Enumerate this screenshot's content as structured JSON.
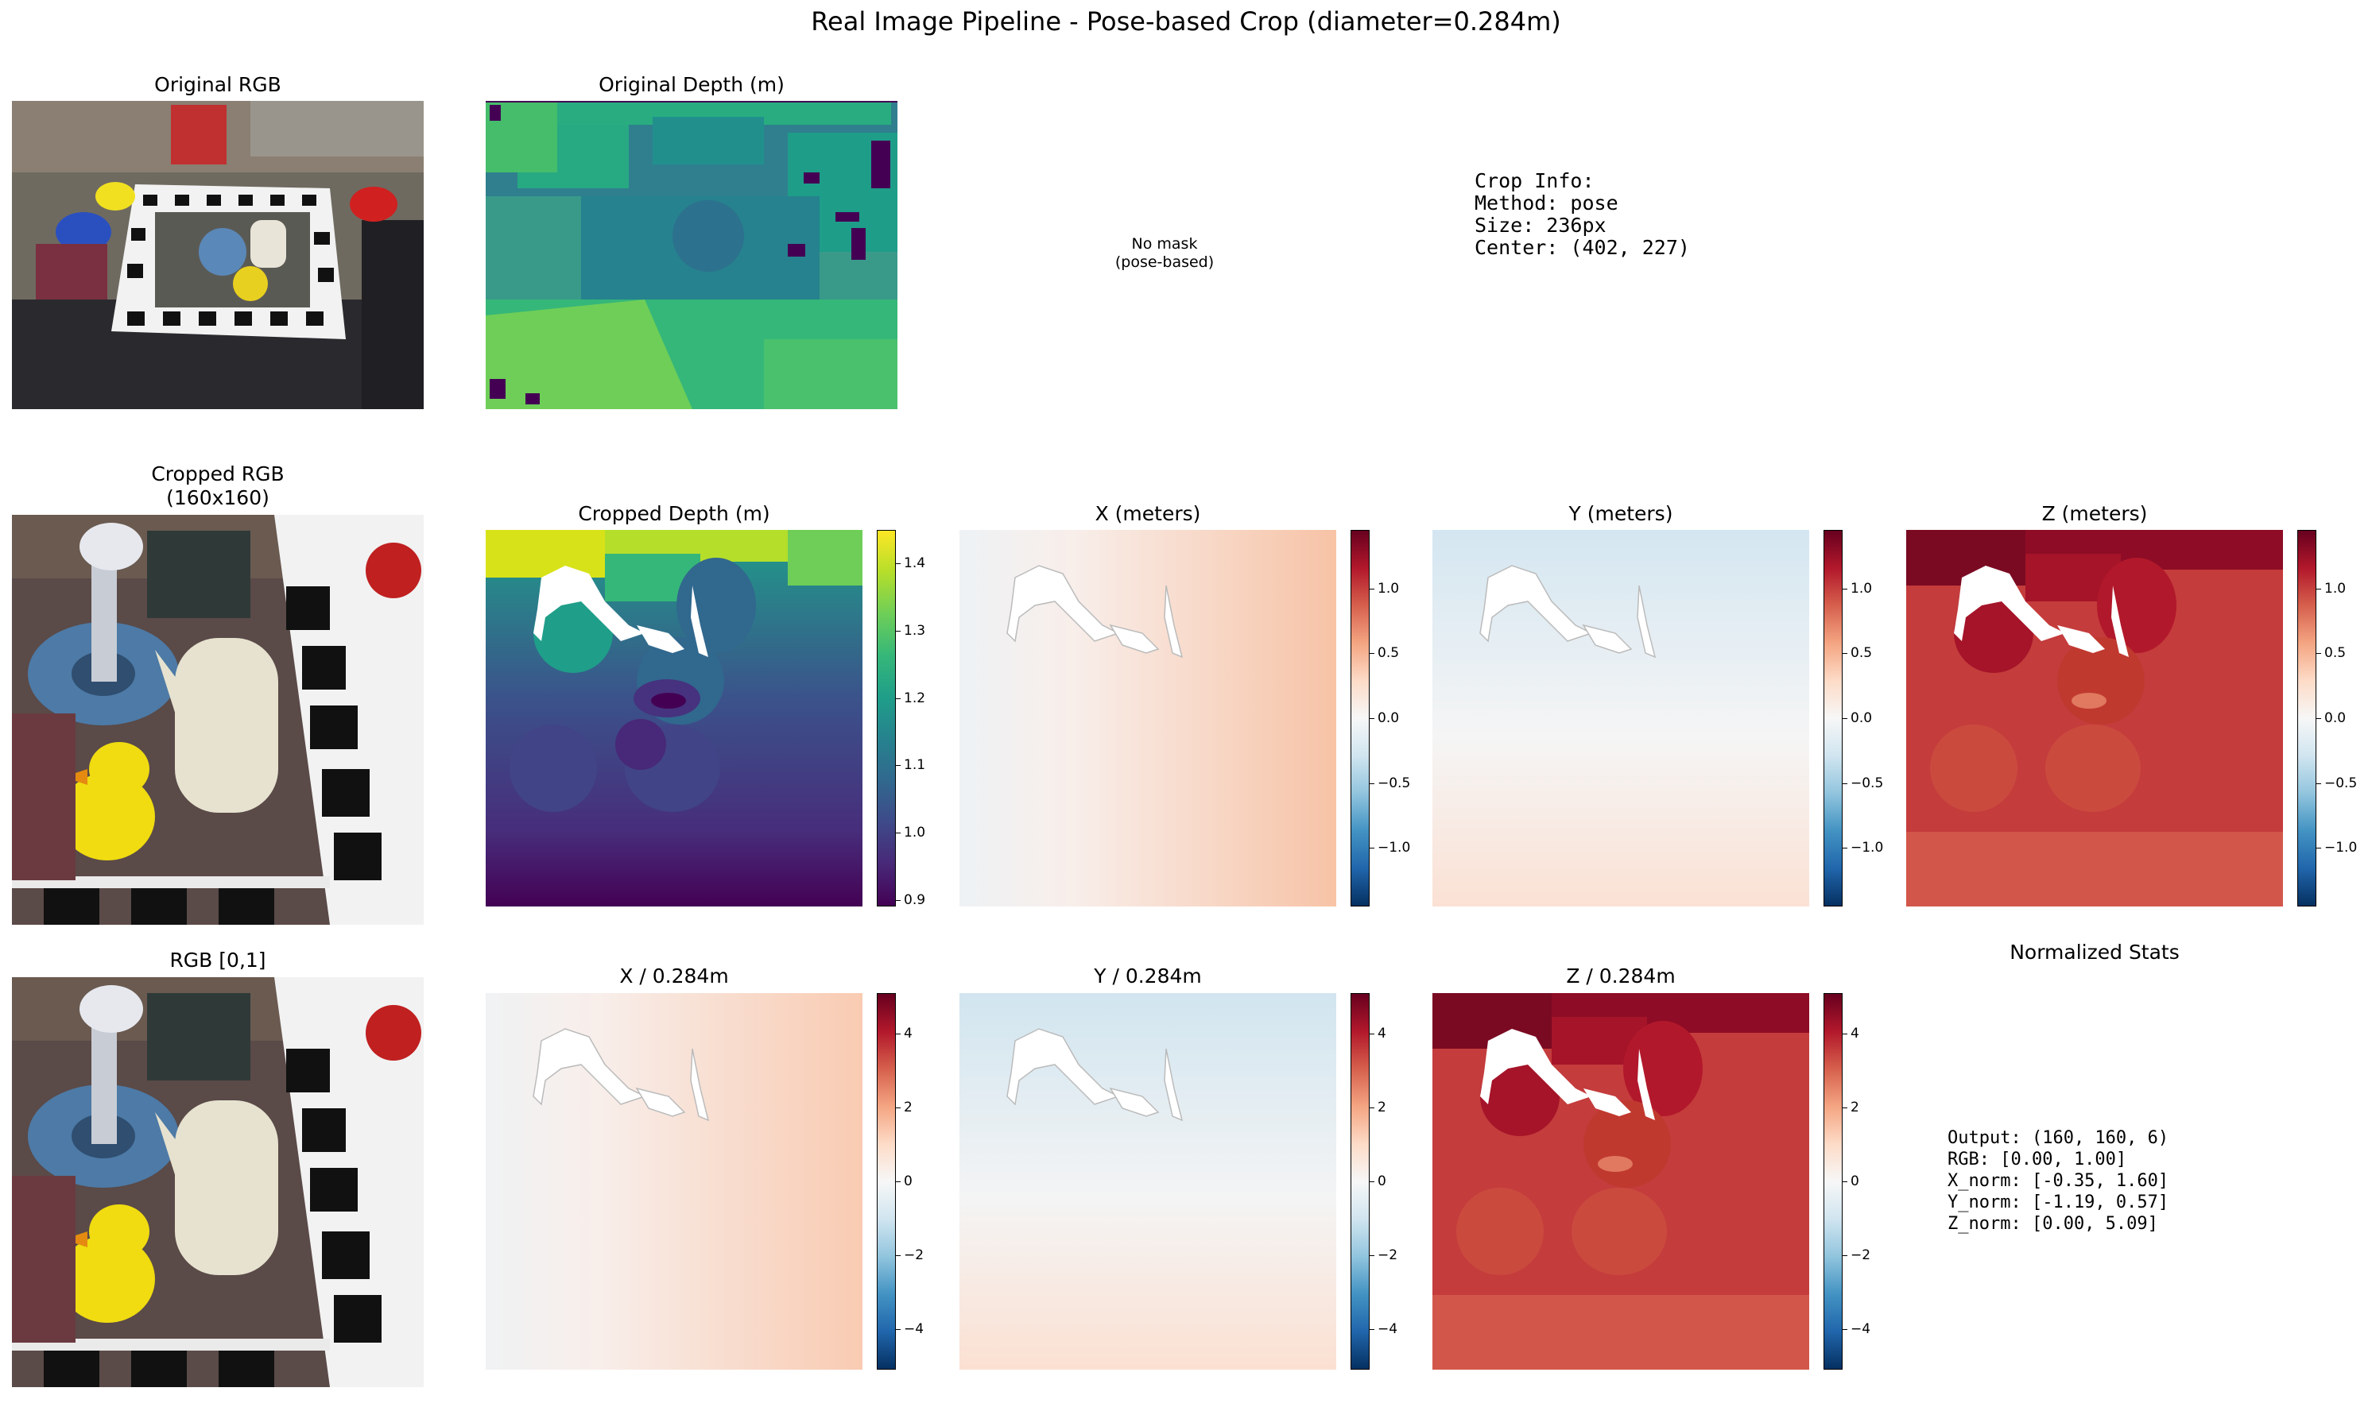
{
  "suptitle": "Real Image Pipeline - Pose-based Crop (diameter=0.284m)",
  "row1": {
    "original_rgb_title": "Original RGB",
    "original_depth_title": "Original Depth (m)",
    "no_mask_text": "No mask\n(pose-based)",
    "crop_info_text": "Crop Info:\nMethod: pose\nSize: 236px\nCenter: (402, 227)"
  },
  "row2": {
    "cropped_rgb_title": "Cropped RGB\n(160x160)",
    "cropped_depth_title": "Cropped Depth (m)",
    "x_title": "X (meters)",
    "y_title": "Y (meters)",
    "z_title": "Z (meters)"
  },
  "row3": {
    "rgb01_title": "RGB [0,1]",
    "xn_title": "X / 0.284m",
    "yn_title": "Y / 0.284m",
    "zn_title": "Z / 0.284m",
    "stats_title": "Normalized Stats",
    "stats_text": "Output: (160, 160, 6)\nRGB: [0.00, 1.00]\nX_norm: [-0.35, 1.60]\nY_norm: [-1.19, 0.57]\nZ_norm: [0.00, 5.09]"
  },
  "colorbars": {
    "depth": {
      "cmap": "viridis",
      "min": 0.89,
      "max": 1.45,
      "ticks": [
        "0.9",
        "1.0",
        "1.1",
        "1.2",
        "1.3",
        "1.4"
      ],
      "tick_values": [
        0.9,
        1.0,
        1.1,
        1.2,
        1.3,
        1.4
      ]
    },
    "xyz": {
      "cmap": "RdBu_r",
      "min": -1.45,
      "max": 1.45,
      "ticks": [
        "−1.0",
        "−0.5",
        "0.0",
        "0.5",
        "1.0"
      ],
      "tick_values": [
        -1.0,
        -0.5,
        0.0,
        0.5,
        1.0
      ]
    },
    "xyz_norm": {
      "cmap": "RdBu_r",
      "min": -5.1,
      "max": 5.1,
      "ticks": [
        "−4",
        "−2",
        "0",
        "2",
        "4"
      ],
      "tick_values": [
        -4,
        -2,
        0,
        2,
        4
      ]
    }
  },
  "chart_data": {
    "type": "heatmap",
    "panels": [
      {
        "name": "X (meters)",
        "range": [
          -0.1,
          0.45
        ]
      },
      {
        "name": "Y (meters)",
        "range": [
          -0.34,
          0.16
        ]
      },
      {
        "name": "Z (meters)",
        "range": [
          0.0,
          1.45
        ]
      },
      {
        "name": "X / 0.284m",
        "range": [
          -0.35,
          1.6
        ]
      },
      {
        "name": "Y / 0.284m",
        "range": [
          -1.19,
          0.57
        ]
      },
      {
        "name": "Z / 0.284m",
        "range": [
          0.0,
          5.09
        ]
      }
    ]
  },
  "colors": {
    "red_dark": "#67001f",
    "blue_dark": "#053061",
    "viridis_low": "#440154",
    "viridis_high": "#fde725"
  }
}
